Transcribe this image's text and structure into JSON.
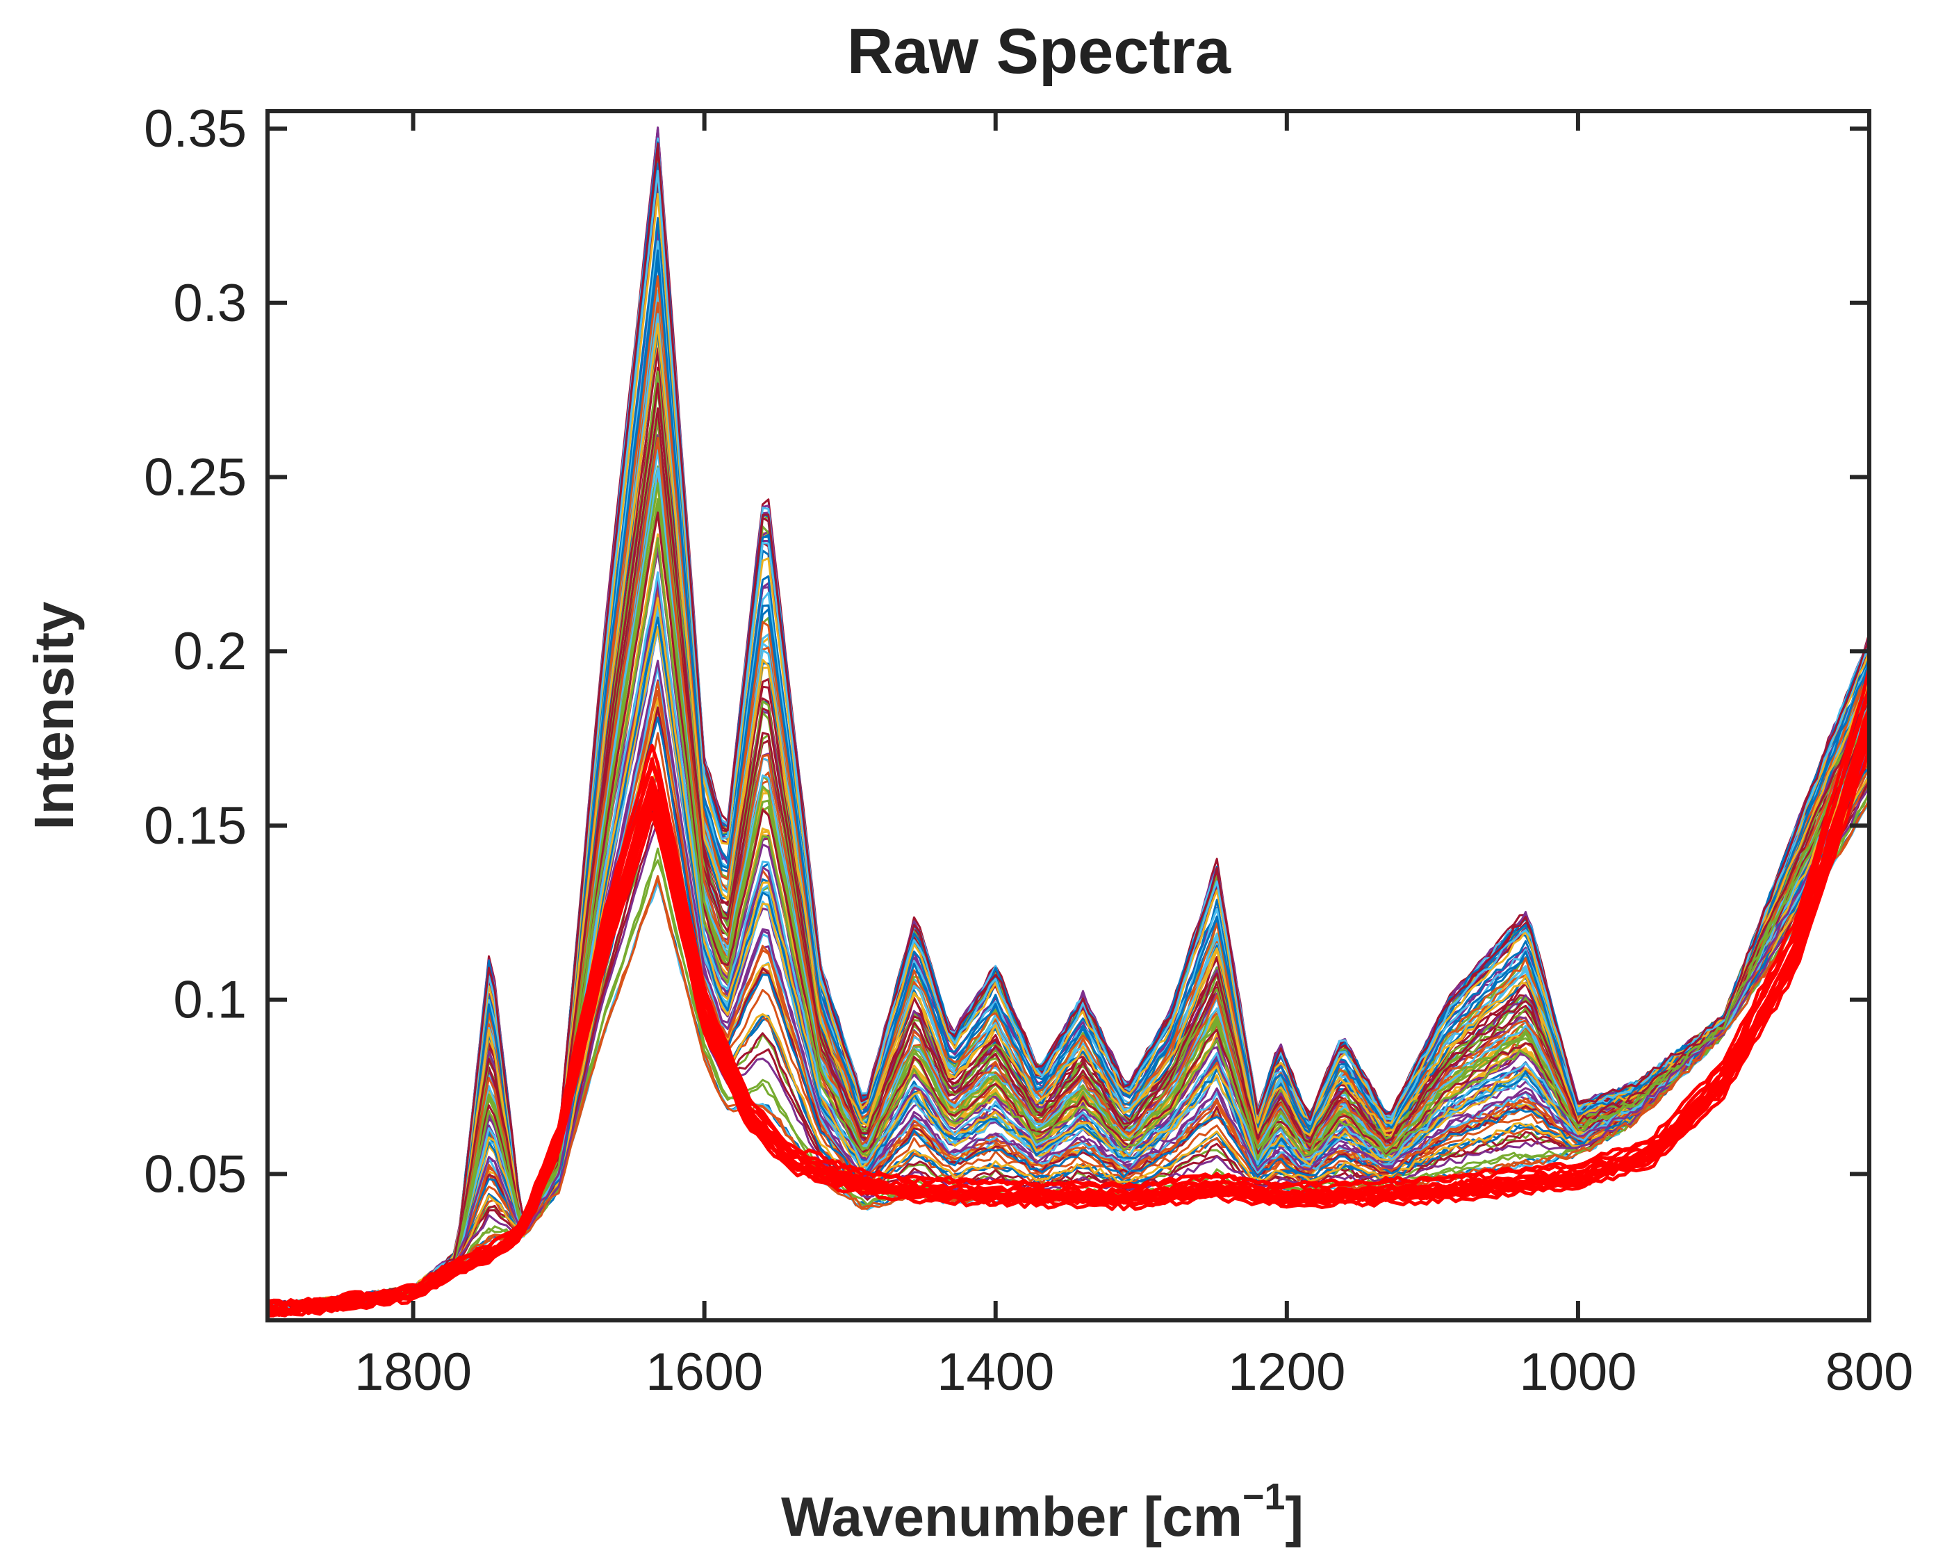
{
  "chart_data": {
    "type": "line",
    "title": "Raw Spectra",
    "xlabel_main": "Wavenumber [cm",
    "xlabel_sup": "−1",
    "xlabel_close": "]",
    "ylabel": "Intensity",
    "xlim": [
      1900,
      800
    ],
    "x_reversed": true,
    "ylim": [
      0.008,
      0.355
    ],
    "xticks": [
      1800,
      1600,
      1400,
      1200,
      1000,
      800
    ],
    "xtick_labels": [
      "1800",
      "1600",
      "1400",
      "1200",
      "1000",
      "800"
    ],
    "yticks": [
      0.05,
      0.1,
      0.15,
      0.2,
      0.25,
      0.3,
      0.35
    ],
    "ytick_labels": [
      "0.05",
      "0.1",
      "0.15",
      "0.2",
      "0.25",
      "0.3",
      "0.35"
    ],
    "grid": false,
    "description_series_count": 112,
    "envelope": {
      "x": [
        1900,
        1850,
        1800,
        1770,
        1747,
        1725,
        1700,
        1670,
        1632,
        1600,
        1585,
        1558,
        1520,
        1490,
        1455,
        1430,
        1400,
        1370,
        1340,
        1310,
        1280,
        1248,
        1220,
        1205,
        1185,
        1162,
        1130,
        1090,
        1035,
        1000,
        960,
        900,
        850,
        800
      ],
      "upper": [
        0.012,
        0.014,
        0.017,
        0.027,
        0.116,
        0.035,
        0.06,
        0.2,
        0.352,
        0.17,
        0.148,
        0.251,
        0.11,
        0.07,
        0.125,
        0.09,
        0.11,
        0.08,
        0.102,
        0.075,
        0.097,
        0.14,
        0.068,
        0.088,
        0.066,
        0.09,
        0.066,
        0.1,
        0.126,
        0.07,
        0.076,
        0.095,
        0.15,
        0.205
      ],
      "lower": [
        0.011,
        0.013,
        0.016,
        0.024,
        0.028,
        0.032,
        0.045,
        0.085,
        0.125,
        0.08,
        0.065,
        0.062,
        0.046,
        0.039,
        0.041,
        0.04,
        0.04,
        0.041,
        0.041,
        0.041,
        0.042,
        0.043,
        0.043,
        0.043,
        0.044,
        0.044,
        0.045,
        0.047,
        0.05,
        0.055,
        0.065,
        0.09,
        0.12,
        0.155
      ]
    },
    "highlight_group": {
      "name": "red spectra",
      "color": "#ff0000",
      "count": 14,
      "x": [
        1900,
        1850,
        1800,
        1770,
        1747,
        1725,
        1700,
        1670,
        1635,
        1600,
        1570,
        1540,
        1500,
        1460,
        1400,
        1300,
        1248,
        1200,
        1100,
        1000,
        950,
        900,
        850,
        800
      ],
      "y": [
        0.011,
        0.013,
        0.016,
        0.024,
        0.028,
        0.035,
        0.062,
        0.12,
        0.17,
        0.1,
        0.07,
        0.056,
        0.05,
        0.047,
        0.046,
        0.045,
        0.048,
        0.045,
        0.047,
        0.051,
        0.058,
        0.08,
        0.12,
        0.19
      ]
    }
  }
}
